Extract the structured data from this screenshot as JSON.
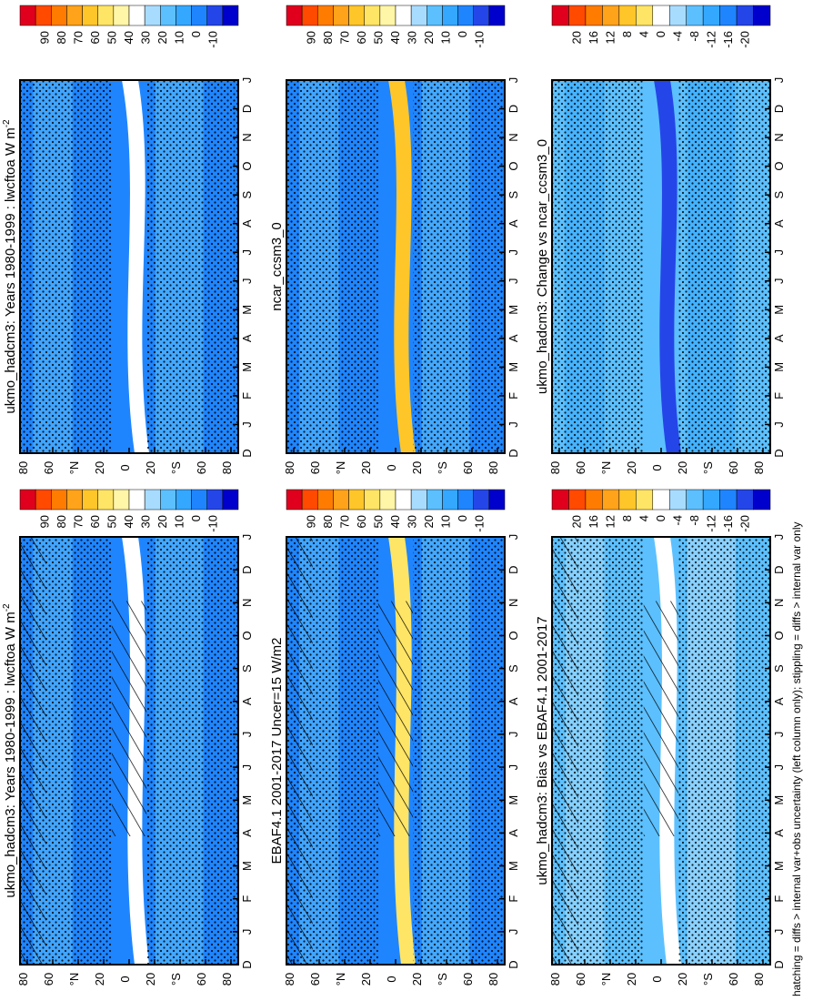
{
  "footnote": "hatching = diffs > internal var+obs uncertainty (left column only); stippling = diffs > internal var only",
  "colors": {
    "c90": "#e0001e",
    "c80": "#ff4a00",
    "c70": "#ff7c00",
    "c60": "#ffa31a",
    "c50": "#ffc62a",
    "c45": "#ffe566",
    "c40": "#fff6a8",
    "c35": "#ffffff",
    "c30": "#a8dcff",
    "c20": "#5cc0ff",
    "c10": "#34a8ff",
    "c00": "#1f85ff",
    "cm10": "#2446e8",
    "cm20": "#0000cc"
  },
  "colorbars": {
    "absolute": {
      "ticks": [
        "90",
        "80",
        "70",
        "60",
        "50",
        "40",
        "30",
        "20",
        "10",
        "0",
        "-10"
      ]
    },
    "difference": {
      "ticks": [
        "20",
        "16",
        "12",
        "8",
        "4",
        "0",
        "-4",
        "-8",
        "-12",
        "-16",
        "-20"
      ]
    }
  },
  "chart_data": [
    {
      "type": "heatmap",
      "title": "ukmo_hadcm3: Years 1980-1999 : lwcftoa W m",
      "title_superscript": "-2",
      "x_ticks": [
        "D",
        "J",
        "F",
        "M",
        "A",
        "M",
        "J",
        "J",
        "A",
        "S",
        "O",
        "N",
        "D",
        "J"
      ],
      "y_ticks": [
        "80",
        "60",
        "°N",
        "20",
        "0",
        "20",
        "°S",
        "60",
        "80"
      ],
      "colorbar": "absolute",
      "description_fields": {
        "base": "c00",
        "band": "c20",
        "equator": "c35",
        "stipple": true,
        "hatch": true
      }
    },
    {
      "type": "heatmap",
      "title": "EBAF4.1 2001-2017 Uncer=15 W/m2",
      "x_ticks": [
        "D",
        "J",
        "F",
        "M",
        "A",
        "M",
        "J",
        "J",
        "A",
        "S",
        "O",
        "N",
        "D",
        "J"
      ],
      "y_ticks": [
        "80",
        "60",
        "°N",
        "20",
        "0",
        "20",
        "°S",
        "60",
        "80"
      ],
      "colorbar": "absolute",
      "description_fields": {
        "base": "c00",
        "band": "c20",
        "equator": "c45",
        "stipple": true,
        "hatch": true
      }
    },
    {
      "type": "heatmap",
      "title": "ukmo_hadcm3: Bias vs EBAF4.1 2001-2017",
      "x_ticks": [
        "D",
        "J",
        "F",
        "M",
        "A",
        "M",
        "J",
        "J",
        "A",
        "S",
        "O",
        "N",
        "D",
        "J"
      ],
      "y_ticks": [
        "80",
        "60",
        "°N",
        "20",
        "0",
        "20",
        "°S",
        "60",
        "80"
      ],
      "colorbar": "difference",
      "description_fields": {
        "base": "c20",
        "band": "c30",
        "equator": "c35",
        "stipple": true,
        "hatch": true
      }
    },
    {
      "type": "heatmap",
      "title": "ukmo_hadcm3: Years 1980-1999 : lwcftoa W m",
      "title_superscript": "-2",
      "x_ticks": [
        "D",
        "J",
        "F",
        "M",
        "A",
        "M",
        "J",
        "J",
        "A",
        "S",
        "O",
        "N",
        "D",
        "J"
      ],
      "y_ticks": [
        "80",
        "60",
        "°N",
        "20",
        "0",
        "20",
        "°S",
        "60",
        "80"
      ],
      "colorbar": "absolute",
      "description_fields": {
        "base": "c00",
        "band": "c20",
        "equator": "c35",
        "stipple": true,
        "hatch": false
      }
    },
    {
      "type": "heatmap",
      "title": "ncar_ccsm3_0",
      "x_ticks": [
        "D",
        "J",
        "F",
        "M",
        "A",
        "M",
        "J",
        "J",
        "A",
        "S",
        "O",
        "N",
        "D",
        "J"
      ],
      "y_ticks": [
        "80",
        "60",
        "°N",
        "20",
        "0",
        "20",
        "°S",
        "60",
        "80"
      ],
      "colorbar": "absolute",
      "description_fields": {
        "base": "c00",
        "band": "c20",
        "equator": "c50",
        "stipple": true,
        "hatch": false
      }
    },
    {
      "type": "heatmap",
      "title": "ukmo_hadcm3: Change vs ncar_ccsm3_0",
      "x_ticks": [
        "D",
        "J",
        "F",
        "M",
        "A",
        "M",
        "J",
        "J",
        "A",
        "S",
        "O",
        "N",
        "D",
        "J"
      ],
      "y_ticks": [
        "80",
        "60",
        "°N",
        "20",
        "0",
        "20",
        "°S",
        "60",
        "80"
      ],
      "colorbar": "difference",
      "description_fields": {
        "base": "c20",
        "band": "c10",
        "equator": "cm10",
        "stipple": true,
        "hatch": false
      }
    }
  ]
}
